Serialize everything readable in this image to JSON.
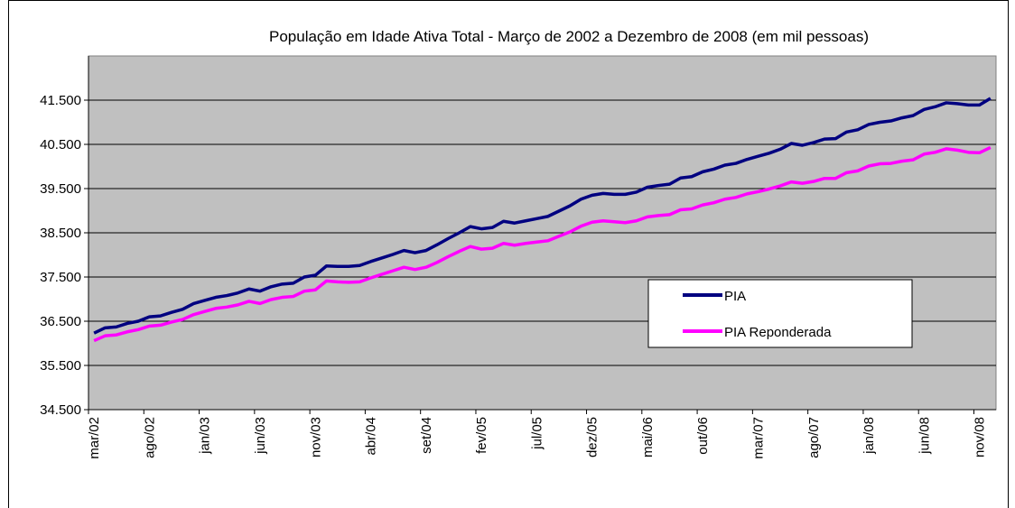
{
  "chart_data": {
    "type": "line",
    "title": "População em Idade Ativa Total - Março de 2002 a Dezembro de 2008 (em mil pessoas)",
    "categories": [
      "mar/02",
      null,
      null,
      null,
      null,
      "ago/02",
      null,
      null,
      null,
      null,
      "jan/03",
      null,
      null,
      null,
      null,
      "jun/03",
      null,
      null,
      null,
      null,
      "nov/03",
      null,
      null,
      null,
      null,
      "abr/04",
      null,
      null,
      null,
      null,
      "set/04",
      null,
      null,
      null,
      null,
      "fev/05",
      null,
      null,
      null,
      null,
      "jul/05",
      null,
      null,
      null,
      null,
      "dez/05",
      null,
      null,
      null,
      null,
      "mai/06",
      null,
      null,
      null,
      null,
      "out/06",
      null,
      null,
      null,
      null,
      "mar/07",
      null,
      null,
      null,
      null,
      "ago/07",
      null,
      null,
      null,
      null,
      "jan/08",
      null,
      null,
      null,
      null,
      "jun/08",
      null,
      null,
      null,
      null,
      "nov/08",
      null
    ],
    "series": [
      {
        "name": "PIA",
        "color": "#000080",
        "values": [
          36230,
          36350,
          36370,
          36450,
          36500,
          36600,
          36620,
          36700,
          36770,
          36900,
          36970,
          37040,
          37080,
          37140,
          37230,
          37180,
          37280,
          37340,
          37360,
          37500,
          37540,
          37750,
          37740,
          37740,
          37760,
          37850,
          37930,
          38010,
          38100,
          38050,
          38100,
          38230,
          38370,
          38500,
          38640,
          38590,
          38620,
          38760,
          38720,
          38770,
          38820,
          38870,
          38990,
          39110,
          39260,
          39350,
          39390,
          39370,
          39370,
          39420,
          39530,
          39570,
          39600,
          39740,
          39770,
          39880,
          39940,
          40030,
          40070,
          40160,
          40230,
          40300,
          40390,
          40520,
          40480,
          40540,
          40620,
          40630,
          40780,
          40830,
          40950,
          41000,
          41030,
          41100,
          41150,
          41290,
          41350,
          41440,
          41420,
          41390,
          41390,
          41540
        ]
      },
      {
        "name": "PIA Reponderada",
        "color": "#ff00ff",
        "values": [
          36060,
          36170,
          36190,
          36260,
          36310,
          36390,
          36410,
          36480,
          36540,
          36650,
          36720,
          36790,
          36820,
          36870,
          36950,
          36900,
          36990,
          37040,
          37060,
          37180,
          37210,
          37410,
          37390,
          37380,
          37390,
          37480,
          37560,
          37640,
          37720,
          37670,
          37720,
          37830,
          37960,
          38080,
          38190,
          38130,
          38150,
          38260,
          38220,
          38260,
          38290,
          38320,
          38420,
          38520,
          38650,
          38740,
          38770,
          38750,
          38730,
          38770,
          38860,
          38890,
          38910,
          39020,
          39040,
          39130,
          39180,
          39260,
          39300,
          39380,
          39430,
          39490,
          39560,
          39650,
          39620,
          39660,
          39730,
          39730,
          39860,
          39900,
          40010,
          40060,
          40070,
          40120,
          40150,
          40280,
          40320,
          40400,
          40370,
          40320,
          40310,
          40430
        ]
      }
    ],
    "ylim": [
      34500,
      42500
    ],
    "yticks": [
      {
        "value": 34500,
        "label": "34.500"
      },
      {
        "value": 35500,
        "label": "35.500"
      },
      {
        "value": 36500,
        "label": "36.500"
      },
      {
        "value": 37500,
        "label": "37.500"
      },
      {
        "value": 38500,
        "label": "38.500"
      },
      {
        "value": 39500,
        "label": "39.500"
      },
      {
        "value": 40500,
        "label": "40.500"
      },
      {
        "value": 41500,
        "label": "41.500"
      }
    ],
    "grid": true,
    "background": "#c0c0c0"
  }
}
